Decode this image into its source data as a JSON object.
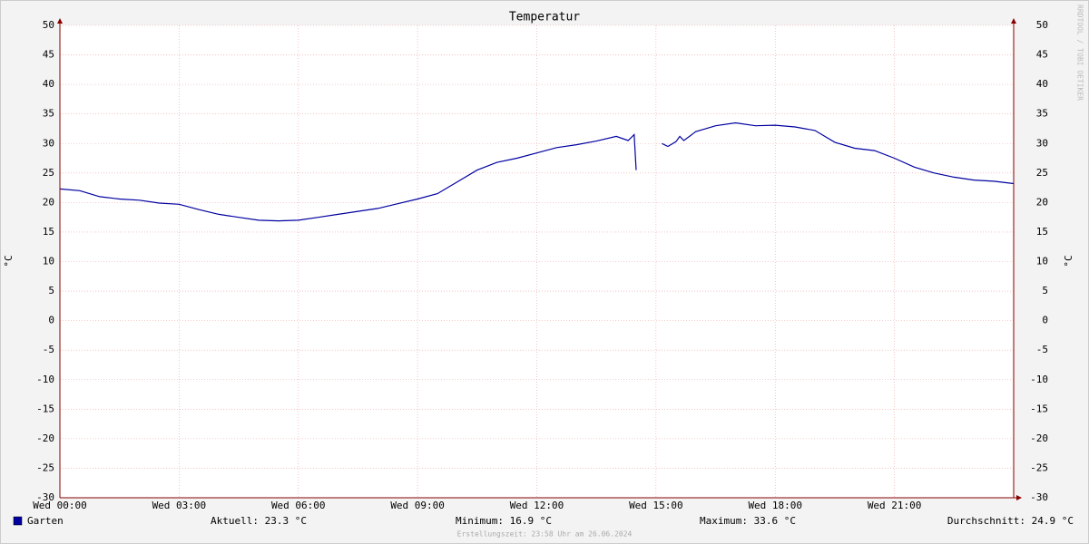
{
  "chart_data": {
    "type": "line",
    "title": "Temperatur",
    "y_label": "°C",
    "watermark": "RRDTOOL / TOBI OETIKER",
    "x": [
      0,
      0.5,
      1,
      1.5,
      2,
      2.5,
      3,
      3.5,
      4,
      4.5,
      5,
      5.5,
      6,
      6.5,
      7,
      7.5,
      8,
      8.5,
      9,
      9.5,
      10,
      10.5,
      11,
      11.5,
      12,
      12.5,
      13,
      13.5,
      14,
      14.3,
      14.45,
      14.5,
      14.8,
      15.15,
      15.3,
      15.5,
      15.6,
      15.7,
      16,
      16.5,
      17,
      17.5,
      18,
      18.5,
      19,
      19.5,
      20,
      20.5,
      21,
      21.5,
      22,
      22.5,
      23,
      23.5,
      24
    ],
    "series": [
      {
        "name": "Garten",
        "color": "#0000a0",
        "values": [
          22.3,
          22.0,
          21.0,
          20.6,
          20.4,
          19.9,
          19.7,
          18.8,
          18.0,
          17.5,
          17.0,
          16.9,
          17.0,
          17.5,
          18.0,
          18.5,
          19.0,
          19.8,
          20.6,
          21.5,
          23.5,
          25.5,
          26.8,
          27.5,
          28.4,
          29.3,
          29.8,
          30.4,
          31.2,
          30.5,
          31.5,
          25.5,
          null,
          30.0,
          29.5,
          30.3,
          31.2,
          30.5,
          32.0,
          33.0,
          33.5,
          33.0,
          33.1,
          32.8,
          32.2,
          30.2,
          29.2,
          28.8,
          27.5,
          26.0,
          25.0,
          24.3,
          23.8,
          23.6,
          23.2
        ]
      }
    ],
    "xlim": [
      0,
      24
    ],
    "xticks": [
      {
        "value": 0,
        "label": "Wed 00:00"
      },
      {
        "value": 3,
        "label": "Wed 03:00"
      },
      {
        "value": 6,
        "label": "Wed 06:00"
      },
      {
        "value": 9,
        "label": "Wed 09:00"
      },
      {
        "value": 12,
        "label": "Wed 12:00"
      },
      {
        "value": 15,
        "label": "Wed 15:00"
      },
      {
        "value": 18,
        "label": "Wed 18:00"
      },
      {
        "value": 21,
        "label": "Wed 21:00"
      }
    ],
    "ylim": [
      -30,
      50
    ],
    "yticks": [
      -30,
      -25,
      -20,
      -15,
      -10,
      -5,
      0,
      5,
      10,
      15,
      20,
      25,
      30,
      35,
      40,
      45,
      50
    ],
    "grid": true,
    "stats": [
      "Aktuell: 23.3 °C",
      "Minimum: 16.9 °C",
      "Maximum: 33.6 °C",
      "Durchschnitt: 24.9 °C"
    ],
    "footer": "Erstellungszeit: 23:58 Uhr am 26.06.2024"
  }
}
